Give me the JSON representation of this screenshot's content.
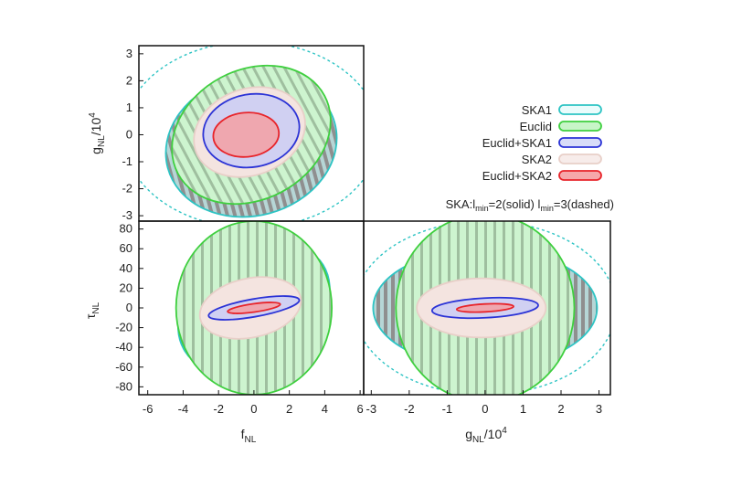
{
  "chart_data": {
    "type": "contour",
    "panels": [
      {
        "name": "gNL-vs-fNL",
        "xlabel": "",
        "ylabel_main": "g",
        "ylabel_sub": "NL",
        "ylabel_tail": "/10",
        "ylabel_sup": "4",
        "xlim": [
          -6.5,
          6.5
        ],
        "ylim": [
          -3.2,
          3.3
        ],
        "xticks": [],
        "yticks": [
          "3",
          "2",
          "1",
          "0",
          "-1",
          "-2",
          "-3"
        ],
        "ytick_values": [
          3,
          2,
          1,
          0,
          -1,
          -2,
          -3
        ],
        "ellipses": [
          {
            "series": "SKA1",
            "cx": 0,
            "cy": 0,
            "rx": 7.4,
            "ry": 3.45,
            "angle": 0,
            "dashed": true
          },
          {
            "series": "SKA1",
            "cx": 0,
            "cy": -0.4,
            "rx": 5.0,
            "ry": 2.6,
            "angle": -15
          },
          {
            "series": "Euclid",
            "cx": 0,
            "cy": 0,
            "rx": 4.8,
            "ry": 2.4,
            "angle": -28
          },
          {
            "series": "SKA2",
            "cx": -0.1,
            "cy": 0.1,
            "rx": 3.3,
            "ry": 1.6,
            "angle": -20
          },
          {
            "series": "Euclid+SKA1",
            "cx": 0,
            "cy": 0.15,
            "rx": 2.8,
            "ry": 1.35,
            "angle": -10
          },
          {
            "series": "Euclid+SKA2",
            "cx": -0.3,
            "cy": 0,
            "rx": 1.9,
            "ry": 0.82,
            "angle": -5
          }
        ]
      },
      {
        "name": "tauNL-vs-fNL",
        "xlabel_main": "f",
        "xlabel_sub": "NL",
        "ylabel_main": "τ",
        "ylabel_sub": "NL",
        "xlim": [
          -6.5,
          6.2
        ],
        "ylim": [
          -88,
          88
        ],
        "xticks": [
          "-6",
          "-4",
          "-2",
          "0",
          "2",
          "4",
          "6"
        ],
        "xtick_values": [
          -6,
          -4,
          -2,
          0,
          2,
          4,
          6
        ],
        "yticks": [
          "80",
          "60",
          "40",
          "20",
          "0",
          "-20",
          "-40",
          "-60",
          "-80"
        ],
        "ytick_values": [
          80,
          60,
          40,
          20,
          0,
          -20,
          -40,
          -60,
          -80
        ],
        "ellipses": [
          {
            "series": "SKA1",
            "cx": 0,
            "cy": 0,
            "rx": 4.6,
            "ry": 60,
            "angle": -32
          },
          {
            "series": "Euclid",
            "cx": 0,
            "cy": 0,
            "rx": 4.4,
            "ry": 88,
            "angle": 0
          },
          {
            "series": "SKA2",
            "cx": -0.2,
            "cy": 0,
            "rx": 2.9,
            "ry": 30,
            "angle": -12
          },
          {
            "series": "Euclid+SKA1",
            "cx": 0,
            "cy": 0,
            "rx": 2.6,
            "ry": 9,
            "angle": -10
          },
          {
            "series": "Euclid+SKA2",
            "cx": 0,
            "cy": 0,
            "rx": 1.5,
            "ry": 4.2,
            "angle": -8
          }
        ]
      },
      {
        "name": "tauNL-vs-gNL",
        "xlabel_main": "g",
        "xlabel_sub": "NL",
        "xlabel_tail": "/10",
        "xlabel_sup": "4",
        "xlim": [
          -3.2,
          3.3
        ],
        "ylim": [
          -88,
          88
        ],
        "xticks": [
          "-3",
          "-2",
          "-1",
          "0",
          "1",
          "2",
          "3"
        ],
        "xtick_values": [
          -3,
          -2,
          -1,
          0,
          1,
          2,
          3
        ],
        "yticks": [],
        "ellipses": [
          {
            "series": "SKA1",
            "cx": 0,
            "cy": 0,
            "rx": 3.45,
            "ry": 88,
            "angle": 0,
            "dashed": true
          },
          {
            "series": "SKA1",
            "cx": 0,
            "cy": 0,
            "rx": 2.95,
            "ry": 60,
            "angle": 0
          },
          {
            "series": "Euclid",
            "cx": 0,
            "cy": 0,
            "rx": 2.35,
            "ry": 95,
            "angle": 0
          },
          {
            "series": "SKA2",
            "cx": -0.1,
            "cy": 0,
            "rx": 1.7,
            "ry": 30,
            "angle": 0
          },
          {
            "series": "Euclid+SKA1",
            "cx": 0,
            "cy": 0,
            "rx": 1.4,
            "ry": 10,
            "angle": -3
          },
          {
            "series": "Euclid+SKA2",
            "cx": 0,
            "cy": 0,
            "rx": 0.75,
            "ry": 4,
            "angle": -3
          }
        ]
      }
    ],
    "legend": {
      "placement": "top-right",
      "entries": [
        {
          "label": "SKA1",
          "color": "#2ec4c4",
          "fill": "#eafcfc"
        },
        {
          "label": "Euclid",
          "color": "#3fcf3f",
          "fill": "#c8f5c8"
        },
        {
          "label": "Euclid+SKA1",
          "color": "#2b33d6",
          "fill": "#d8dcf8"
        },
        {
          "label": "SKA2",
          "color": "#e8cfc8",
          "fill": "#f7ecea"
        },
        {
          "label": "Euclid+SKA2",
          "color": "#e8242a",
          "fill": "#f6a8aa"
        }
      ],
      "note_a": "SKA:l",
      "note_a_sub": "min",
      "note_b": "=2(solid) l",
      "note_b_sub": "min",
      "note_c": "=3(dashed)"
    }
  }
}
